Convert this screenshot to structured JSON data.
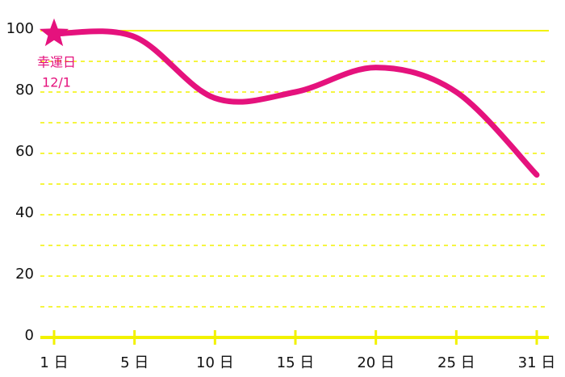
{
  "chart_data": {
    "type": "line",
    "categories": [
      "1 日",
      "5 日",
      "10 日",
      "15 日",
      "20 日",
      "25 日",
      "31 日"
    ],
    "series": [
      {
        "color": "#e5127d",
        "values": [
          99,
          98,
          78,
          80,
          88,
          80,
          53
        ]
      }
    ],
    "ylim": [
      0,
      100
    ],
    "yticks": [
      0,
      20,
      40,
      60,
      80,
      100
    ],
    "grid": true,
    "grid_color": "#f2f200",
    "annotation": {
      "index": 0,
      "text": "幸運日",
      "date": "12/1"
    }
  }
}
